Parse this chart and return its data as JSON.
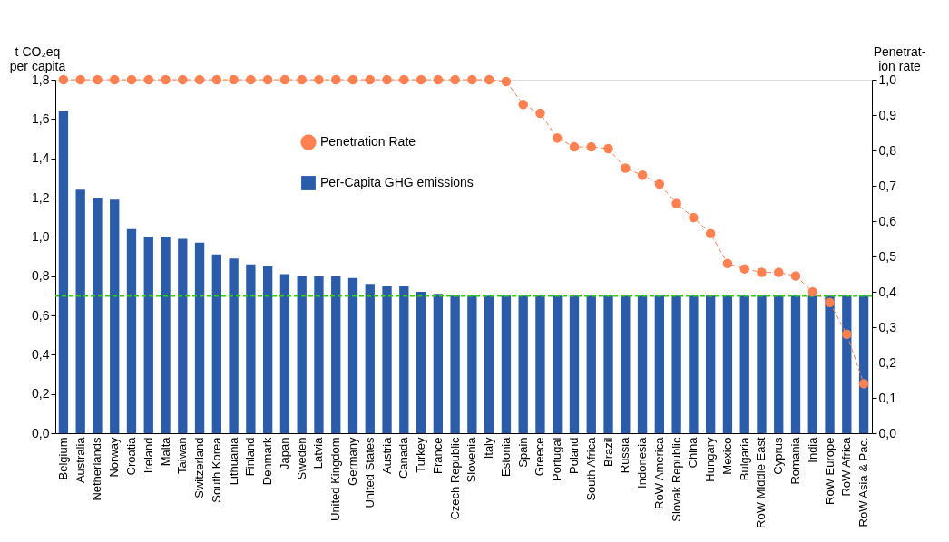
{
  "chart_data": {
    "type": "bar",
    "categories": [
      "Belgium",
      "Australia",
      "Netherlands",
      "Norway",
      "Croatia",
      "Ireland",
      "Malta",
      "Taiwan",
      "Switzerland",
      "South Korea",
      "Lithuania",
      "Finland",
      "Denmark",
      "Japan",
      "Sweden",
      "Latvia",
      "United Kingdom",
      "Germany",
      "United States",
      "Austria",
      "Canada",
      "Turkey",
      "France",
      "Czech Republic",
      "Slovenia",
      "Italy",
      "Estonia",
      "Spain",
      "Greece",
      "Portugal",
      "Poland",
      "South Africa",
      "Brazil",
      "Russia",
      "Indonesia",
      "RoW America",
      "Slovak Republic",
      "China",
      "Hungary",
      "Mexico",
      "Bulgaria",
      "RoW Middle East",
      "Cyprus",
      "Romania",
      "India",
      "RoW Europe",
      "RoW Africa",
      "RoW Asia & Pac."
    ],
    "series": [
      {
        "name": "Per-Capita GHG emissions",
        "type": "bar",
        "color": "#2a5caa",
        "values": [
          1.64,
          1.24,
          1.2,
          1.19,
          1.04,
          1.0,
          1.0,
          0.99,
          0.97,
          0.91,
          0.89,
          0.86,
          0.85,
          0.81,
          0.8,
          0.8,
          0.8,
          0.79,
          0.76,
          0.75,
          0.75,
          0.72,
          0.71,
          0.7,
          0.7,
          0.7,
          0.7,
          0.7,
          0.7,
          0.7,
          0.7,
          0.7,
          0.7,
          0.7,
          0.7,
          0.7,
          0.7,
          0.7,
          0.7,
          0.7,
          0.7,
          0.7,
          0.7,
          0.7,
          0.7,
          0.7,
          0.7,
          0.7
        ]
      },
      {
        "name": "Penetration Rate",
        "type": "line",
        "axis": "y2",
        "color": "#ff8050",
        "marker": "circle",
        "line_style": "dashed",
        "values": [
          1.0,
          1.0,
          1.0,
          1.0,
          1.0,
          1.0,
          1.0,
          1.0,
          1.0,
          1.0,
          1.0,
          1.0,
          1.0,
          1.0,
          1.0,
          1.0,
          1.0,
          1.0,
          1.0,
          1.0,
          1.0,
          1.0,
          1.0,
          1.0,
          1.0,
          1.0,
          0.995,
          0.93,
          0.905,
          0.835,
          0.81,
          0.81,
          0.805,
          0.75,
          0.73,
          0.705,
          0.65,
          0.61,
          0.565,
          0.48,
          0.465,
          0.455,
          0.455,
          0.445,
          0.4,
          0.37,
          0.28,
          0.14
        ]
      }
    ],
    "ylabel": "t CO₂eq\nper capita",
    "y2label": "Penetrat-\nion rate",
    "ylim": [
      0,
      1.8
    ],
    "yticks": [
      {
        "value": 0,
        "label": "0,0"
      },
      {
        "value": 0.2,
        "label": "0,2"
      },
      {
        "value": 0.4,
        "label": "0,4"
      },
      {
        "value": 0.6,
        "label": "0,6"
      },
      {
        "value": 0.8,
        "label": "0,8"
      },
      {
        "value": 1.0,
        "label": "1,0"
      },
      {
        "value": 1.2,
        "label": "1,2"
      },
      {
        "value": 1.4,
        "label": "1,4"
      },
      {
        "value": 1.6,
        "label": "1,6"
      },
      {
        "value": 1.8,
        "label": "1,8"
      }
    ],
    "y2lim": [
      0,
      1.0
    ],
    "y2ticks": [
      {
        "value": 0,
        "label": "0,0"
      },
      {
        "value": 0.1,
        "label": "0,1"
      },
      {
        "value": 0.2,
        "label": "0,2"
      },
      {
        "value": 0.3,
        "label": "0,3"
      },
      {
        "value": 0.4,
        "label": "0,4"
      },
      {
        "value": 0.5,
        "label": "0,5"
      },
      {
        "value": 0.6,
        "label": "0,6"
      },
      {
        "value": 0.7,
        "label": "0,7"
      },
      {
        "value": 0.8,
        "label": "0,8"
      },
      {
        "value": 0.9,
        "label": "0,9"
      },
      {
        "value": 1.0,
        "label": "1,0"
      }
    ],
    "ref_lines": [
      {
        "axis": "y",
        "value": 0.7,
        "color": "#33cc00",
        "line_style": "dashed"
      }
    ],
    "grid": false,
    "legend": "top"
  }
}
